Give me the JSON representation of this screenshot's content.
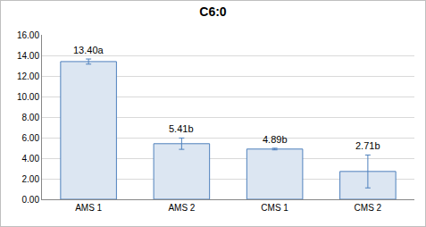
{
  "chart_data": {
    "type": "bar",
    "title": "C6:0",
    "categories": [
      "AMS 1",
      "AMS 2",
      "CMS 1",
      "CMS 2"
    ],
    "values": [
      13.4,
      5.41,
      4.89,
      2.71
    ],
    "value_labels": [
      "13.40a",
      "5.41b",
      "4.89b",
      "2.71b"
    ],
    "errors": [
      0.25,
      0.55,
      0.08,
      1.6
    ],
    "color": "#dce6f2",
    "ylim": [
      0,
      16
    ],
    "yticks": [
      {
        "value": 0,
        "label": "0.00"
      },
      {
        "value": 2,
        "label": "2.00"
      },
      {
        "value": 4,
        "label": "4.00"
      },
      {
        "value": 6,
        "label": "6.00"
      },
      {
        "value": 8,
        "label": "8.00"
      },
      {
        "value": 10,
        "label": "10.00"
      },
      {
        "value": 12,
        "label": "12.00"
      },
      {
        "value": 14,
        "label": "14.00"
      },
      {
        "value": 16,
        "label": "16.00"
      }
    ],
    "grid": true,
    "data_labels": true
  }
}
